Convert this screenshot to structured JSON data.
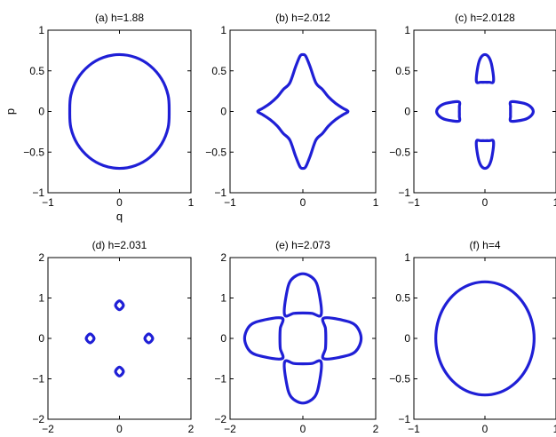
{
  "chart_data": [
    {
      "type": "line",
      "title": "(a) h=1.88",
      "xlabel": "q",
      "ylabel": "p",
      "xlim": [
        -1,
        1
      ],
      "ylim": [
        -1,
        1
      ],
      "xticks": [
        -1,
        0,
        1
      ],
      "yticks": [
        -1,
        -0.5,
        0,
        0.5,
        1
      ],
      "xtick_labels": [
        "−1",
        "0",
        "1"
      ],
      "ytick_labels": [
        "−1",
        "−0.5",
        "0",
        "0.5",
        "1"
      ],
      "grid": false,
      "series": [
        {
          "color": "#1f1fd6",
          "x": [
            0.0,
            0.224,
            0.425,
            0.589,
            0.68,
            0.695,
            0.68,
            0.589,
            0.425,
            0.224,
            0.0,
            -0.224,
            -0.425,
            -0.589,
            -0.68,
            -0.695,
            -0.68,
            -0.589,
            -0.425,
            -0.224,
            0.0
          ],
          "y": [
            0.7,
            0.665,
            0.565,
            0.4,
            0.2,
            0.0,
            -0.2,
            -0.4,
            -0.565,
            -0.665,
            -0.7,
            -0.665,
            -0.565,
            -0.4,
            -0.2,
            0.0,
            0.2,
            0.4,
            0.565,
            0.665,
            0.7
          ]
        }
      ]
    },
    {
      "type": "line",
      "title": "(b) h=2.012",
      "xlim": [
        -1,
        1
      ],
      "ylim": [
        -1,
        1
      ],
      "xticks": [
        -1,
        0,
        1
      ],
      "yticks": [
        -1,
        -0.5,
        0,
        0.5,
        1
      ],
      "xtick_labels": [
        "−1",
        "0",
        "1"
      ],
      "ytick_labels": [
        "−1",
        "−0.5",
        "0",
        "0.5",
        "1"
      ],
      "grid": false,
      "series": [
        {
          "color": "#1f1fd6",
          "x": [
            0.0,
            0.04,
            0.1,
            0.18,
            0.27,
            0.35,
            0.45,
            0.55,
            0.62,
            0.55,
            0.45,
            0.35,
            0.27,
            0.18,
            0.1,
            0.04,
            0.0,
            -0.04,
            -0.1,
            -0.18,
            -0.27,
            -0.35,
            -0.45,
            -0.55,
            -0.62,
            -0.55,
            -0.45,
            -0.35,
            -0.27,
            -0.18,
            -0.1,
            -0.04,
            0.0
          ],
          "y": [
            0.7,
            0.68,
            0.55,
            0.35,
            0.27,
            0.18,
            0.1,
            0.04,
            0.0,
            -0.04,
            -0.1,
            -0.18,
            -0.27,
            -0.35,
            -0.55,
            -0.68,
            -0.7,
            -0.68,
            -0.55,
            -0.35,
            -0.27,
            -0.18,
            -0.1,
            -0.04,
            0.0,
            0.04,
            0.1,
            0.18,
            0.27,
            0.35,
            0.55,
            0.68,
            0.7
          ]
        }
      ]
    },
    {
      "type": "line",
      "title": "(c) h=2.0128",
      "xlim": [
        -1,
        1
      ],
      "ylim": [
        -1,
        1
      ],
      "xticks": [
        -1,
        0,
        1
      ],
      "yticks": [
        -1,
        -0.5,
        0,
        0.5,
        1
      ],
      "xtick_labels": [
        "−1",
        "0",
        "1"
      ],
      "ytick_labels": [
        "−1",
        "−0.5",
        "0",
        "0.5",
        "1"
      ],
      "grid": false,
      "series": [
        {
          "color": "#1f1fd6",
          "x": [
            -0.12,
            -0.1,
            -0.06,
            0.0,
            0.06,
            0.1,
            0.12,
            0.06,
            0.0,
            -0.06,
            -0.12
          ],
          "y": [
            0.37,
            0.55,
            0.66,
            0.7,
            0.66,
            0.55,
            0.37,
            0.36,
            0.36,
            0.36,
            0.37
          ]
        },
        {
          "color": "#1f1fd6",
          "x": [
            -0.12,
            -0.1,
            -0.06,
            0.0,
            0.06,
            0.1,
            0.12,
            0.06,
            0.0,
            -0.06,
            -0.12
          ],
          "y": [
            -0.37,
            -0.55,
            -0.66,
            -0.7,
            -0.66,
            -0.55,
            -0.37,
            -0.36,
            -0.36,
            -0.36,
            -0.37
          ]
        },
        {
          "color": "#1f1fd6",
          "x": [
            0.37,
            0.55,
            0.64,
            0.68,
            0.64,
            0.55,
            0.37,
            0.36,
            0.36,
            0.36,
            0.37
          ],
          "y": [
            -0.12,
            -0.1,
            -0.06,
            0.0,
            0.06,
            0.1,
            0.12,
            0.06,
            0.0,
            -0.06,
            -0.12
          ]
        },
        {
          "color": "#1f1fd6",
          "x": [
            -0.37,
            -0.55,
            -0.64,
            -0.68,
            -0.64,
            -0.55,
            -0.37,
            -0.36,
            -0.36,
            -0.36,
            -0.37
          ],
          "y": [
            -0.12,
            -0.1,
            -0.06,
            0.0,
            0.06,
            0.1,
            0.12,
            0.06,
            0.0,
            -0.06,
            -0.12
          ]
        }
      ]
    },
    {
      "type": "line",
      "title": "(d) h=2.031",
      "xlim": [
        -2,
        2
      ],
      "ylim": [
        -2,
        2
      ],
      "xticks": [
        -2,
        0,
        2
      ],
      "yticks": [
        -2,
        -1,
        0,
        1,
        2
      ],
      "xtick_labels": [
        "−2",
        "0",
        "2"
      ],
      "ytick_labels": [
        "−2",
        "−1",
        "0",
        "1",
        "2"
      ],
      "grid": false,
      "series": [
        {
          "color": "#1f1fd6",
          "x": [
            0.0,
            0.11,
            0.0,
            -0.11,
            0.0
          ],
          "y": [
            0.93,
            0.82,
            0.71,
            0.82,
            0.93
          ]
        },
        {
          "color": "#1f1fd6",
          "x": [
            0.0,
            0.11,
            0.0,
            -0.11,
            0.0
          ],
          "y": [
            -0.71,
            -0.82,
            -0.93,
            -0.82,
            -0.71
          ]
        },
        {
          "color": "#1f1fd6",
          "x": [
            0.82,
            0.93,
            0.82,
            0.71,
            0.82
          ],
          "y": [
            0.11,
            0.0,
            -0.11,
            0.0,
            0.11
          ]
        },
        {
          "color": "#1f1fd6",
          "x": [
            -0.82,
            -0.71,
            -0.82,
            -0.93,
            -0.82
          ],
          "y": [
            0.11,
            0.0,
            -0.11,
            0.0,
            0.11
          ]
        }
      ]
    },
    {
      "type": "line",
      "title": "(e) h=2.073",
      "xlim": [
        -2,
        2
      ],
      "ylim": [
        -2,
        2
      ],
      "xticks": [
        -2,
        0,
        2
      ],
      "yticks": [
        -2,
        -1,
        0,
        1,
        2
      ],
      "xtick_labels": [
        "−2",
        "0",
        "2"
      ],
      "ytick_labels": [
        "−2",
        "−1",
        "0",
        "1",
        "2"
      ],
      "grid": false,
      "series": [
        {
          "color": "#1f1fd6",
          "x": [
            -0.5,
            -0.45,
            -0.32,
            0.0,
            0.32,
            0.45,
            0.5,
            0.25,
            0.0,
            -0.25,
            -0.5
          ],
          "y": [
            0.58,
            1.1,
            1.45,
            1.6,
            1.45,
            1.1,
            0.58,
            0.62,
            0.63,
            0.62,
            0.58
          ]
        },
        {
          "color": "#1f1fd6",
          "x": [
            -0.5,
            -0.45,
            -0.32,
            0.0,
            0.32,
            0.45,
            0.5,
            0.25,
            0.0,
            -0.25,
            -0.5
          ],
          "y": [
            -0.58,
            -1.1,
            -1.45,
            -1.6,
            -1.45,
            -1.1,
            -0.58,
            -0.62,
            -0.63,
            -0.62,
            -0.58
          ]
        },
        {
          "color": "#1f1fd6",
          "x": [
            0.57,
            1.1,
            1.45,
            1.6,
            1.45,
            1.1,
            0.57,
            0.62,
            0.63,
            0.62,
            0.57
          ],
          "y": [
            -0.5,
            -0.45,
            -0.32,
            0.0,
            0.32,
            0.45,
            0.5,
            0.25,
            0.0,
            -0.25,
            -0.5
          ]
        },
        {
          "color": "#1f1fd6",
          "x": [
            -0.57,
            -1.1,
            -1.45,
            -1.6,
            -1.45,
            -1.1,
            -0.57,
            -0.62,
            -0.63,
            -0.62,
            -0.57
          ],
          "y": [
            -0.5,
            -0.45,
            -0.32,
            0.0,
            0.32,
            0.45,
            0.5,
            0.25,
            0.0,
            -0.25,
            -0.5
          ]
        }
      ]
    },
    {
      "type": "line",
      "title": "(f) h=4",
      "xlim": [
        -1,
        1
      ],
      "ylim": [
        -1,
        1
      ],
      "xticks": [
        -1,
        0,
        1
      ],
      "yticks": [
        -1,
        -0.5,
        0,
        0.5,
        1
      ],
      "xtick_labels": [
        "−1",
        "0",
        "1"
      ],
      "ytick_labels": [
        "−1",
        "−0.5",
        "0",
        "0.5",
        "1"
      ],
      "grid": false,
      "series": [
        {
          "color": "#1f1fd6",
          "x": [
            0.0,
            0.179,
            0.346,
            0.489,
            0.599,
            0.668,
            0.692,
            0.668,
            0.599,
            0.489,
            0.346,
            0.179,
            0.0,
            -0.179,
            -0.346,
            -0.489,
            -0.599,
            -0.668,
            -0.692,
            -0.668,
            -0.599,
            -0.489,
            -0.346,
            -0.179,
            0.0
          ],
          "y": [
            0.7,
            0.676,
            0.606,
            0.495,
            0.35,
            0.181,
            0.0,
            -0.181,
            -0.35,
            -0.495,
            -0.606,
            -0.676,
            -0.7,
            -0.676,
            -0.606,
            -0.495,
            -0.35,
            -0.181,
            0.0,
            0.181,
            0.35,
            0.495,
            0.606,
            0.676,
            0.7
          ]
        }
      ]
    }
  ]
}
